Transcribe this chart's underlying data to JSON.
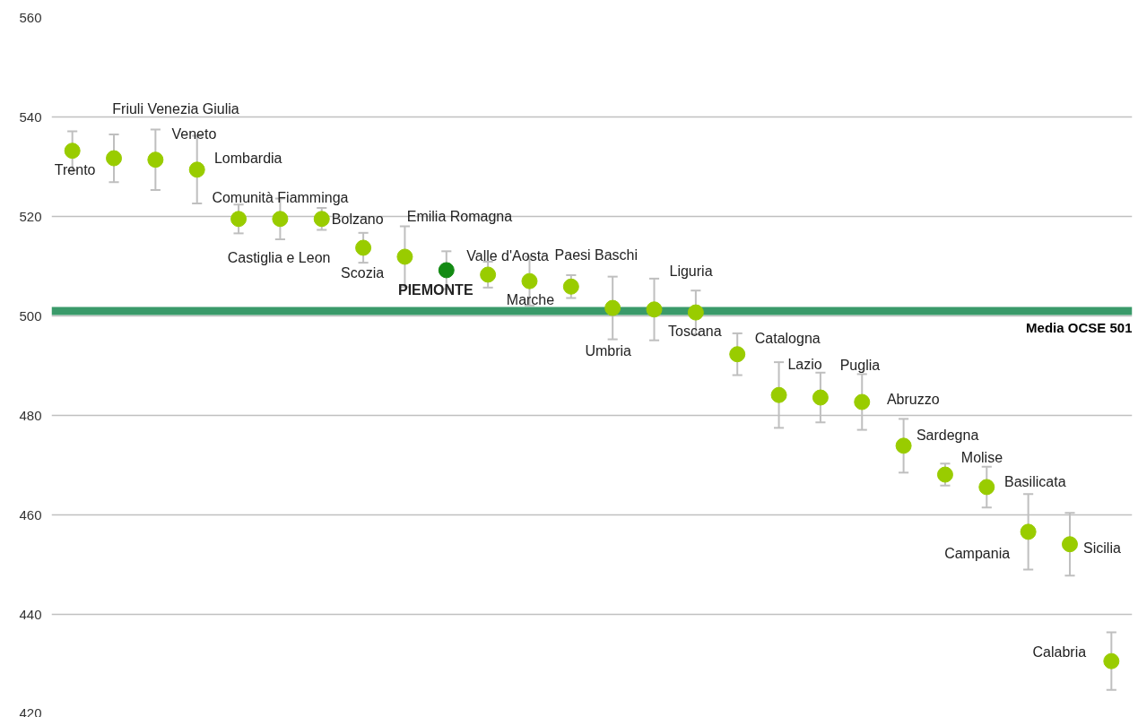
{
  "chart_data": {
    "type": "scatter",
    "marker": "circle",
    "grid": "y",
    "tick_labels": "y",
    "legend": false,
    "categories": [
      null,
      null,
      null,
      null,
      null,
      null,
      null,
      null,
      null,
      null,
      null,
      null,
      null,
      null,
      null,
      null,
      null,
      null,
      null,
      null,
      null,
      null,
      null,
      null,
      null,
      null
    ],
    "series": [
      {
        "name": "Trento",
        "color": "#99cc00",
        "values": [
          533.2,
          null,
          null,
          null,
          null,
          null,
          null,
          null,
          null,
          null,
          null,
          null,
          null,
          null,
          null,
          null,
          null,
          null,
          null,
          null,
          null,
          null,
          null,
          null,
          null,
          null
        ],
        "errors": [
          3.9,
          null,
          null,
          null,
          null,
          null,
          null,
          null,
          null,
          null,
          null,
          null,
          null,
          null,
          null,
          null,
          null,
          null,
          null,
          null,
          null,
          null,
          null,
          null,
          null,
          null
        ]
      },
      {
        "name": "Friuli Venezia Giulia",
        "color": "#99cc00",
        "values": [
          null,
          531.7,
          null,
          null,
          null,
          null,
          null,
          null,
          null,
          null,
          null,
          null,
          null,
          null,
          null,
          null,
          null,
          null,
          null,
          null,
          null,
          null,
          null,
          null,
          null,
          null
        ],
        "errors": [
          null,
          4.8,
          null,
          null,
          null,
          null,
          null,
          null,
          null,
          null,
          null,
          null,
          null,
          null,
          null,
          null,
          null,
          null,
          null,
          null,
          null,
          null,
          null,
          null,
          null,
          null
        ]
      },
      {
        "name": "Veneto",
        "color": "#99cc00",
        "values": [
          null,
          null,
          531.4,
          null,
          null,
          null,
          null,
          null,
          null,
          null,
          null,
          null,
          null,
          null,
          null,
          null,
          null,
          null,
          null,
          null,
          null,
          null,
          null,
          null,
          null,
          null
        ],
        "errors": [
          null,
          null,
          6.1,
          null,
          null,
          null,
          null,
          null,
          null,
          null,
          null,
          null,
          null,
          null,
          null,
          null,
          null,
          null,
          null,
          null,
          null,
          null,
          null,
          null,
          null,
          null
        ]
      },
      {
        "name": "Lombardia",
        "color": "#99cc00",
        "values": [
          null,
          null,
          null,
          529.4,
          null,
          null,
          null,
          null,
          null,
          null,
          null,
          null,
          null,
          null,
          null,
          null,
          null,
          null,
          null,
          null,
          null,
          null,
          null,
          null,
          null,
          null
        ],
        "errors": [
          null,
          null,
          null,
          6.8,
          null,
          null,
          null,
          null,
          null,
          null,
          null,
          null,
          null,
          null,
          null,
          null,
          null,
          null,
          null,
          null,
          null,
          null,
          null,
          null,
          null,
          null
        ]
      },
      {
        "name": "Castiglia e Leon",
        "color": "#99cc00",
        "values": [
          null,
          null,
          null,
          null,
          519.5,
          null,
          null,
          null,
          null,
          null,
          null,
          null,
          null,
          null,
          null,
          null,
          null,
          null,
          null,
          null,
          null,
          null,
          null,
          null,
          null,
          null
        ],
        "errors": [
          null,
          null,
          null,
          null,
          2.9,
          null,
          null,
          null,
          null,
          null,
          null,
          null,
          null,
          null,
          null,
          null,
          null,
          null,
          null,
          null,
          null,
          null,
          null,
          null,
          null,
          null
        ]
      },
      {
        "name": "Comunità Fiamminga",
        "color": "#99cc00",
        "values": [
          null,
          null,
          null,
          null,
          null,
          519.5,
          null,
          null,
          null,
          null,
          null,
          null,
          null,
          null,
          null,
          null,
          null,
          null,
          null,
          null,
          null,
          null,
          null,
          null,
          null,
          null
        ],
        "errors": [
          null,
          null,
          null,
          null,
          null,
          4.1,
          null,
          null,
          null,
          null,
          null,
          null,
          null,
          null,
          null,
          null,
          null,
          null,
          null,
          null,
          null,
          null,
          null,
          null,
          null,
          null
        ]
      },
      {
        "name": "Bolzano",
        "color": "#99cc00",
        "values": [
          null,
          null,
          null,
          null,
          null,
          null,
          519.5,
          null,
          null,
          null,
          null,
          null,
          null,
          null,
          null,
          null,
          null,
          null,
          null,
          null,
          null,
          null,
          null,
          null,
          null,
          null
        ],
        "errors": [
          null,
          null,
          null,
          null,
          null,
          null,
          2.2,
          null,
          null,
          null,
          null,
          null,
          null,
          null,
          null,
          null,
          null,
          null,
          null,
          null,
          null,
          null,
          null,
          null,
          null,
          null
        ]
      },
      {
        "name": "Scozia",
        "color": "#99cc00",
        "values": [
          null,
          null,
          null,
          null,
          null,
          null,
          null,
          513.7,
          null,
          null,
          null,
          null,
          null,
          null,
          null,
          null,
          null,
          null,
          null,
          null,
          null,
          null,
          null,
          null,
          null,
          null
        ],
        "errors": [
          null,
          null,
          null,
          null,
          null,
          null,
          null,
          3.0,
          null,
          null,
          null,
          null,
          null,
          null,
          null,
          null,
          null,
          null,
          null,
          null,
          null,
          null,
          null,
          null,
          null,
          null
        ]
      },
      {
        "name": "Emilia Romagna",
        "color": "#99cc00",
        "values": [
          null,
          null,
          null,
          null,
          null,
          null,
          null,
          null,
          511.9,
          null,
          null,
          null,
          null,
          null,
          null,
          null,
          null,
          null,
          null,
          null,
          null,
          null,
          null,
          null,
          null,
          null
        ],
        "errors": [
          null,
          null,
          null,
          null,
          null,
          null,
          null,
          null,
          6.1,
          null,
          null,
          null,
          null,
          null,
          null,
          null,
          null,
          null,
          null,
          null,
          null,
          null,
          null,
          null,
          null,
          null
        ]
      },
      {
        "name": "PIEMONTE",
        "color": "#138a13",
        "values": [
          null,
          null,
          null,
          null,
          null,
          null,
          null,
          null,
          null,
          509.2,
          null,
          null,
          null,
          null,
          null,
          null,
          null,
          null,
          null,
          null,
          null,
          null,
          null,
          null,
          null,
          null
        ],
        "errors": [
          null,
          null,
          null,
          null,
          null,
          null,
          null,
          null,
          null,
          3.8,
          null,
          null,
          null,
          null,
          null,
          null,
          null,
          null,
          null,
          null,
          null,
          null,
          null,
          null,
          null,
          null
        ]
      },
      {
        "name": "Valle d'Aosta",
        "color": "#99cc00",
        "values": [
          null,
          null,
          null,
          null,
          null,
          null,
          null,
          null,
          null,
          null,
          508.3,
          null,
          null,
          null,
          null,
          null,
          null,
          null,
          null,
          null,
          null,
          null,
          null,
          null,
          null,
          null
        ],
        "errors": [
          null,
          null,
          null,
          null,
          null,
          null,
          null,
          null,
          null,
          null,
          2.6,
          null,
          null,
          null,
          null,
          null,
          null,
          null,
          null,
          null,
          null,
          null,
          null,
          null,
          null,
          null
        ]
      },
      {
        "name": "Marche",
        "color": "#99cc00",
        "values": [
          null,
          null,
          null,
          null,
          null,
          null,
          null,
          null,
          null,
          null,
          null,
          507.0,
          null,
          null,
          null,
          null,
          null,
          null,
          null,
          null,
          null,
          null,
          null,
          null,
          null,
          null
        ],
        "errors": [
          null,
          null,
          null,
          null,
          null,
          null,
          null,
          null,
          null,
          null,
          null,
          4.9,
          null,
          null,
          null,
          null,
          null,
          null,
          null,
          null,
          null,
          null,
          null,
          null,
          null,
          null
        ]
      },
      {
        "name": "Paesi Baschi",
        "color": "#99cc00",
        "values": [
          null,
          null,
          null,
          null,
          null,
          null,
          null,
          null,
          null,
          null,
          null,
          null,
          505.9,
          null,
          null,
          null,
          null,
          null,
          null,
          null,
          null,
          null,
          null,
          null,
          null,
          null
        ],
        "errors": [
          null,
          null,
          null,
          null,
          null,
          null,
          null,
          null,
          null,
          null,
          null,
          null,
          2.3,
          null,
          null,
          null,
          null,
          null,
          null,
          null,
          null,
          null,
          null,
          null,
          null,
          null
        ]
      },
      {
        "name": "Umbria",
        "color": "#99cc00",
        "values": [
          null,
          null,
          null,
          null,
          null,
          null,
          null,
          null,
          null,
          null,
          null,
          null,
          null,
          501.6,
          null,
          null,
          null,
          null,
          null,
          null,
          null,
          null,
          null,
          null,
          null,
          null
        ],
        "errors": [
          null,
          null,
          null,
          null,
          null,
          null,
          null,
          null,
          null,
          null,
          null,
          null,
          null,
          6.3,
          null,
          null,
          null,
          null,
          null,
          null,
          null,
          null,
          null,
          null,
          null,
          null
        ]
      },
      {
        "name": "Liguria",
        "color": "#99cc00",
        "values": [
          null,
          null,
          null,
          null,
          null,
          null,
          null,
          null,
          null,
          null,
          null,
          null,
          null,
          null,
          501.3,
          null,
          null,
          null,
          null,
          null,
          null,
          null,
          null,
          null,
          null,
          null
        ],
        "errors": [
          null,
          null,
          null,
          null,
          null,
          null,
          null,
          null,
          null,
          null,
          null,
          null,
          null,
          null,
          6.2,
          null,
          null,
          null,
          null,
          null,
          null,
          null,
          null,
          null,
          null,
          null
        ]
      },
      {
        "name": "Toscana",
        "color": "#99cc00",
        "values": [
          null,
          null,
          null,
          null,
          null,
          null,
          null,
          null,
          null,
          null,
          null,
          null,
          null,
          null,
          null,
          500.7,
          null,
          null,
          null,
          null,
          null,
          null,
          null,
          null,
          null,
          null
        ],
        "errors": [
          null,
          null,
          null,
          null,
          null,
          null,
          null,
          null,
          null,
          null,
          null,
          null,
          null,
          null,
          null,
          4.4,
          null,
          null,
          null,
          null,
          null,
          null,
          null,
          null,
          null,
          null
        ]
      },
      {
        "name": "Catalogna",
        "color": "#99cc00",
        "values": [
          null,
          null,
          null,
          null,
          null,
          null,
          null,
          null,
          null,
          null,
          null,
          null,
          null,
          null,
          null,
          null,
          492.3,
          null,
          null,
          null,
          null,
          null,
          null,
          null,
          null,
          null
        ],
        "errors": [
          null,
          null,
          null,
          null,
          null,
          null,
          null,
          null,
          null,
          null,
          null,
          null,
          null,
          null,
          null,
          null,
          4.2,
          null,
          null,
          null,
          null,
          null,
          null,
          null,
          null,
          null
        ]
      },
      {
        "name": "Lazio",
        "color": "#99cc00",
        "values": [
          null,
          null,
          null,
          null,
          null,
          null,
          null,
          null,
          null,
          null,
          null,
          null,
          null,
          null,
          null,
          null,
          null,
          484.1,
          null,
          null,
          null,
          null,
          null,
          null,
          null,
          null
        ],
        "errors": [
          null,
          null,
          null,
          null,
          null,
          null,
          null,
          null,
          null,
          null,
          null,
          null,
          null,
          null,
          null,
          null,
          null,
          6.6,
          null,
          null,
          null,
          null,
          null,
          null,
          null,
          null
        ]
      },
      {
        "name": "Puglia",
        "color": "#99cc00",
        "values": [
          null,
          null,
          null,
          null,
          null,
          null,
          null,
          null,
          null,
          null,
          null,
          null,
          null,
          null,
          null,
          null,
          null,
          null,
          483.6,
          null,
          null,
          null,
          null,
          null,
          null,
          null
        ],
        "errors": [
          null,
          null,
          null,
          null,
          null,
          null,
          null,
          null,
          null,
          null,
          null,
          null,
          null,
          null,
          null,
          null,
          null,
          null,
          5.0,
          null,
          null,
          null,
          null,
          null,
          null,
          null
        ]
      },
      {
        "name": "Abruzzo",
        "color": "#99cc00",
        "values": [
          null,
          null,
          null,
          null,
          null,
          null,
          null,
          null,
          null,
          null,
          null,
          null,
          null,
          null,
          null,
          null,
          null,
          null,
          null,
          482.7,
          null,
          null,
          null,
          null,
          null,
          null
        ],
        "errors": [
          null,
          null,
          null,
          null,
          null,
          null,
          null,
          null,
          null,
          null,
          null,
          null,
          null,
          null,
          null,
          null,
          null,
          null,
          null,
          5.6,
          null,
          null,
          null,
          null,
          null,
          null
        ]
      },
      {
        "name": "Sardegna",
        "color": "#99cc00",
        "values": [
          null,
          null,
          null,
          null,
          null,
          null,
          null,
          null,
          null,
          null,
          null,
          null,
          null,
          null,
          null,
          null,
          null,
          null,
          null,
          null,
          473.9,
          null,
          null,
          null,
          null,
          null
        ],
        "errors": [
          null,
          null,
          null,
          null,
          null,
          null,
          null,
          null,
          null,
          null,
          null,
          null,
          null,
          null,
          null,
          null,
          null,
          null,
          null,
          null,
          5.4,
          null,
          null,
          null,
          null,
          null
        ]
      },
      {
        "name": "Molise",
        "color": "#99cc00",
        "values": [
          null,
          null,
          null,
          null,
          null,
          null,
          null,
          null,
          null,
          null,
          null,
          null,
          null,
          null,
          null,
          null,
          null,
          null,
          null,
          null,
          null,
          468.1,
          null,
          null,
          null,
          null
        ],
        "errors": [
          null,
          null,
          null,
          null,
          null,
          null,
          null,
          null,
          null,
          null,
          null,
          null,
          null,
          null,
          null,
          null,
          null,
          null,
          null,
          null,
          null,
          2.2,
          null,
          null,
          null,
          null
        ]
      },
      {
        "name": "Basilicata",
        "color": "#99cc00",
        "values": [
          null,
          null,
          null,
          null,
          null,
          null,
          null,
          null,
          null,
          null,
          null,
          null,
          null,
          null,
          null,
          null,
          null,
          null,
          null,
          null,
          null,
          null,
          465.6,
          null,
          null,
          null
        ],
        "errors": [
          null,
          null,
          null,
          null,
          null,
          null,
          null,
          null,
          null,
          null,
          null,
          null,
          null,
          null,
          null,
          null,
          null,
          null,
          null,
          null,
          null,
          null,
          4.1,
          null,
          null,
          null
        ]
      },
      {
        "name": "Campania",
        "color": "#99cc00",
        "values": [
          null,
          null,
          null,
          null,
          null,
          null,
          null,
          null,
          null,
          null,
          null,
          null,
          null,
          null,
          null,
          null,
          null,
          null,
          null,
          null,
          null,
          null,
          null,
          456.6,
          null,
          null
        ],
        "errors": [
          null,
          null,
          null,
          null,
          null,
          null,
          null,
          null,
          null,
          null,
          null,
          null,
          null,
          null,
          null,
          null,
          null,
          null,
          null,
          null,
          null,
          null,
          null,
          7.6,
          null,
          null
        ]
      },
      {
        "name": "Sicilia",
        "color": "#99cc00",
        "values": [
          null,
          null,
          null,
          null,
          null,
          null,
          null,
          null,
          null,
          null,
          null,
          null,
          null,
          null,
          null,
          null,
          null,
          null,
          null,
          null,
          null,
          null,
          null,
          null,
          454.1,
          null
        ],
        "errors": [
          null,
          null,
          null,
          null,
          null,
          null,
          null,
          null,
          null,
          null,
          null,
          null,
          null,
          null,
          null,
          null,
          null,
          null,
          null,
          null,
          null,
          null,
          null,
          null,
          6.3,
          null
        ]
      },
      {
        "name": "Calabria",
        "color": "#99cc00",
        "values": [
          null,
          null,
          null,
          null,
          null,
          null,
          null,
          null,
          null,
          null,
          null,
          null,
          null,
          null,
          null,
          null,
          null,
          null,
          null,
          null,
          null,
          null,
          null,
          null,
          null,
          430.6
        ],
        "errors": [
          null,
          null,
          null,
          null,
          null,
          null,
          null,
          null,
          null,
          null,
          null,
          null,
          null,
          null,
          null,
          null,
          null,
          null,
          null,
          null,
          null,
          null,
          null,
          null,
          null,
          5.8
        ]
      }
    ],
    "ylim": [
      420,
      560
    ],
    "yticks": [
      420,
      440,
      460,
      480,
      500,
      520,
      540,
      560
    ],
    "ref_lines": [
      {
        "axis": "y",
        "value": 501,
        "label": "Media OCSE 501",
        "color": "#3a9a6a"
      }
    ]
  }
}
